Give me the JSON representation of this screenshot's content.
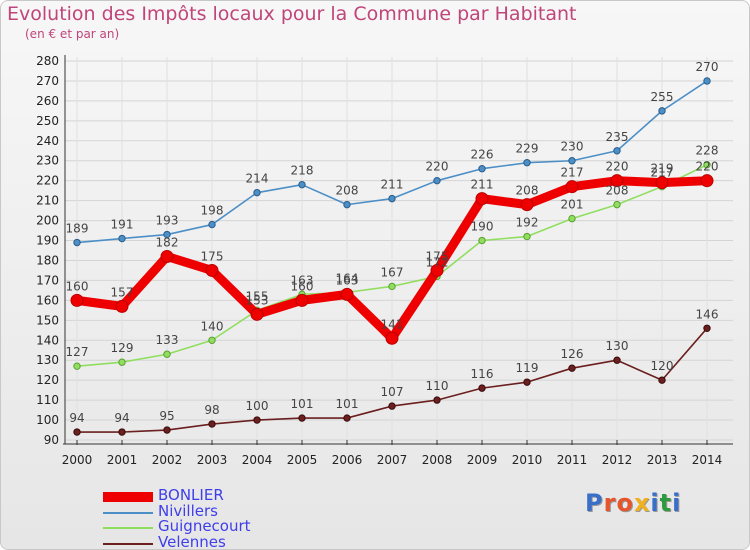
{
  "title": "Evolution des Impôts locaux pour la Commune par Habitant",
  "subtitle": "(en € et par an)",
  "logo_text": "Proxiti",
  "colors": {
    "title": "#c0457a",
    "legend_text": "#3e3eea",
    "logo": [
      "#3a6fc8",
      "#e6542d",
      "#e6542d",
      "#f0b020",
      "#3a6fc8",
      "#2e9a3e",
      "#3a6fc8"
    ]
  },
  "legend": [
    {
      "label": "BONLIER",
      "color": "#ee0000",
      "thickness": 10
    },
    {
      "label": "Nivillers",
      "color": "#4c8fc7",
      "thickness": 2
    },
    {
      "label": "Guignecourt",
      "color": "#90de60",
      "thickness": 2
    },
    {
      "label": "Velennes",
      "color": "#6b1f1f",
      "thickness": 2
    }
  ],
  "chart_data": {
    "type": "line",
    "title": "Evolution des Impôts locaux pour la Commune par Habitant",
    "subtitle": "(en € et par an)",
    "x": [
      "2000",
      "2001",
      "2002",
      "2003",
      "2004",
      "2005",
      "2006",
      "2007",
      "2008",
      "2009",
      "2010",
      "2011",
      "2012",
      "2013",
      "2014"
    ],
    "ylim": [
      90,
      280
    ],
    "ytick_step": 10,
    "yticks": [
      "90",
      "100",
      "110",
      "120",
      "130",
      "140",
      "150",
      "160",
      "170",
      "180",
      "190",
      "200",
      "210",
      "220",
      "230",
      "240",
      "250",
      "260",
      "270",
      "280"
    ],
    "grid": true,
    "legend_position": "bottom-left",
    "series": [
      {
        "name": "Nivillers",
        "color": "#4c8fc7",
        "values": [
          189,
          191,
          193,
          198,
          214,
          218,
          208,
          211,
          220,
          226,
          229,
          230,
          235,
          255,
          270
        ]
      },
      {
        "name": "Guignecourt",
        "color": "#90de60",
        "values": [
          127,
          129,
          133,
          140,
          155,
          163,
          164,
          167,
          172,
          190,
          192,
          201,
          208,
          217,
          228
        ]
      },
      {
        "name": "Velennes",
        "color": "#6b1f1f",
        "values": [
          94,
          94,
          95,
          98,
          100,
          101,
          101,
          107,
          110,
          116,
          119,
          126,
          130,
          120,
          146
        ]
      },
      {
        "name": "BONLIER",
        "color": "#ee0000",
        "values": [
          160,
          157,
          182,
          175,
          153,
          160,
          163,
          141,
          175,
          211,
          208,
          217,
          220,
          219,
          220
        ]
      }
    ]
  }
}
